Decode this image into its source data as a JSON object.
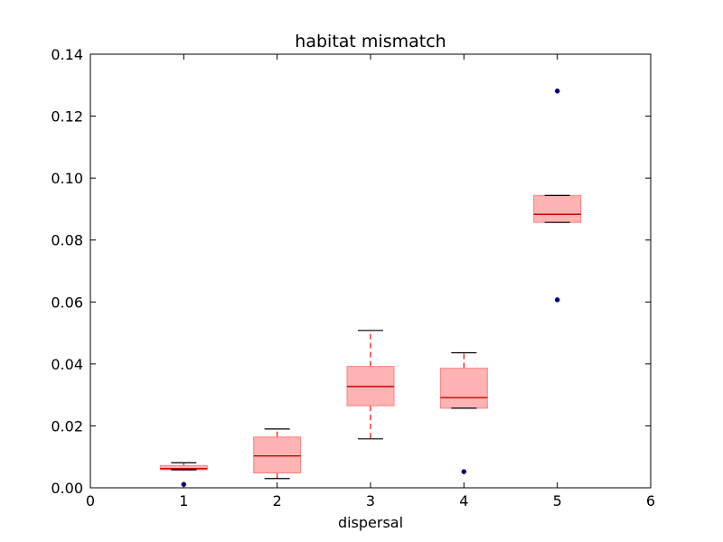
{
  "chart_data": {
    "type": "box",
    "title": "habitat mismatch",
    "xlabel": "dispersal",
    "ylabel": "",
    "xlim": [
      0,
      6
    ],
    "ylim": [
      0,
      0.14
    ],
    "x_ticks": [
      0,
      1,
      2,
      3,
      4,
      5,
      6
    ],
    "x_tick_labels": [
      "0",
      "1",
      "2",
      "3",
      "4",
      "5",
      "6"
    ],
    "y_ticks": [
      0.0,
      0.02,
      0.04,
      0.06,
      0.08,
      0.1,
      0.12,
      0.14
    ],
    "y_tick_labels": [
      "0.00",
      "0.02",
      "0.04",
      "0.06",
      "0.08",
      "0.10",
      "0.12",
      "0.14"
    ],
    "grid": false,
    "colors": {
      "box_fill": "#ffb3b3",
      "box_edge": "#ff8080",
      "median": "#cc0000",
      "whisker": "#ff0000",
      "cap": "#000000",
      "flier": "#00008b"
    },
    "boxes": [
      {
        "x": 1,
        "whislo": 0.0058,
        "q1": 0.0058,
        "med": 0.0062,
        "q3": 0.0072,
        "whishi": 0.0081,
        "fliers": [
          0.0011
        ]
      },
      {
        "x": 2,
        "whislo": 0.003,
        "q1": 0.0048,
        "med": 0.0103,
        "q3": 0.0164,
        "whishi": 0.019,
        "fliers": []
      },
      {
        "x": 3,
        "whislo": 0.0158,
        "q1": 0.0265,
        "med": 0.0327,
        "q3": 0.0392,
        "whishi": 0.0508,
        "fliers": []
      },
      {
        "x": 4,
        "whislo": 0.0257,
        "q1": 0.0257,
        "med": 0.0291,
        "q3": 0.0386,
        "whishi": 0.0436,
        "fliers": [
          0.0052
        ]
      },
      {
        "x": 5,
        "whislo": 0.0857,
        "q1": 0.0857,
        "med": 0.0883,
        "q3": 0.0944,
        "whishi": 0.0944,
        "fliers": [
          0.1281,
          0.0607
        ]
      }
    ]
  }
}
